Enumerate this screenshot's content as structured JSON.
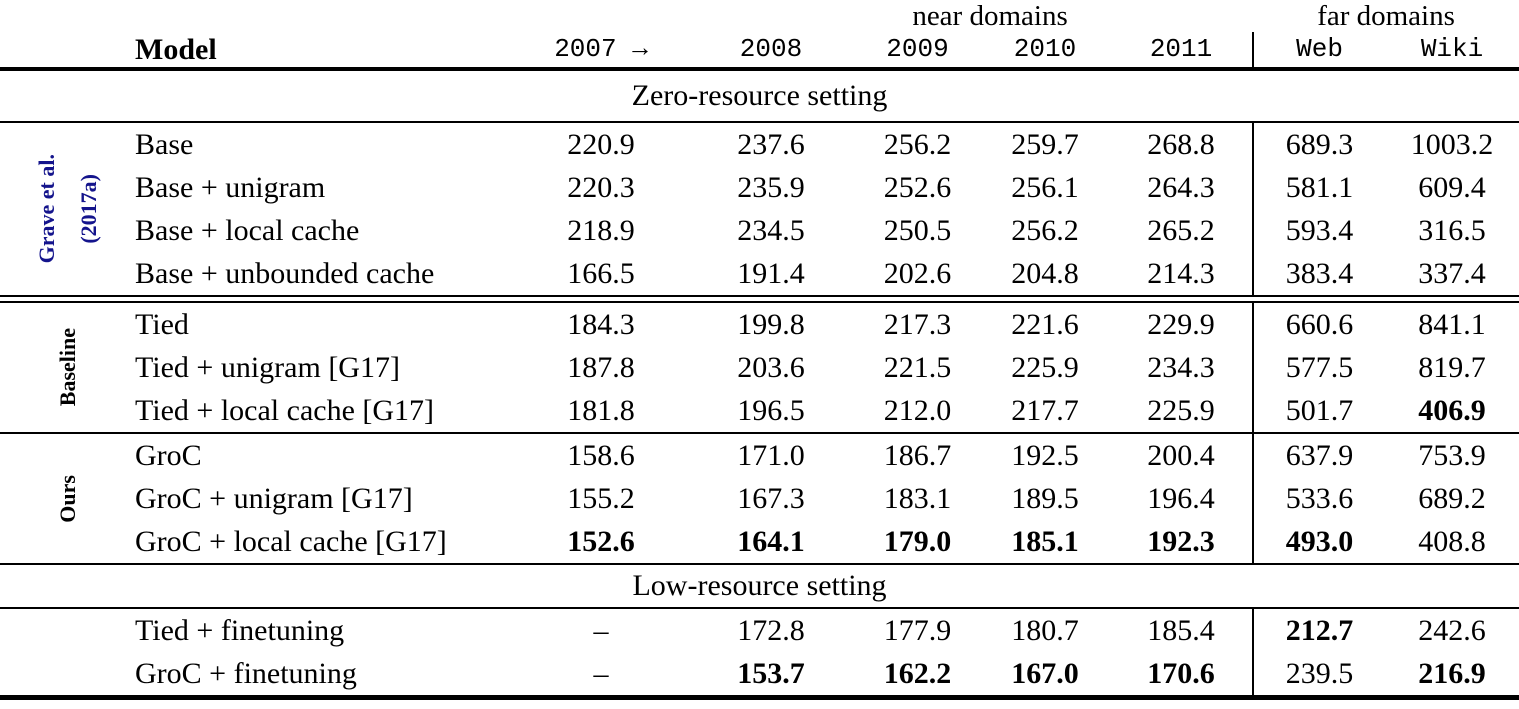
{
  "table": {
    "header": {
      "near_domains": "near domains",
      "far_domains": "far domains",
      "model": "Model",
      "year_cols": [
        "2007 →",
        "2008",
        "2009",
        "2010",
        "2011"
      ],
      "far_cols": [
        "Web",
        "Wiki"
      ]
    },
    "accent_color": "#14148c",
    "sections": [
      {
        "kind": "title",
        "label": "Zero-resource setting"
      },
      {
        "kind": "group",
        "side": {
          "lines": [
            "Grave et al.",
            "(2017a)"
          ],
          "color": "#14148c"
        },
        "rows": [
          {
            "model": "Base",
            "values": [
              "220.9",
              "237.6",
              "256.2",
              "259.7",
              "268.8",
              "689.3",
              "1003.2"
            ],
            "bold": []
          },
          {
            "model": "Base + unigram",
            "values": [
              "220.3",
              "235.9",
              "252.6",
              "256.1",
              "264.3",
              "581.1",
              "609.4"
            ],
            "bold": []
          },
          {
            "model": "Base + local cache",
            "values": [
              "218.9",
              "234.5",
              "250.5",
              "256.2",
              "265.2",
              "593.4",
              "316.5"
            ],
            "bold": []
          },
          {
            "model": "Base + unbounded cache",
            "values": [
              "166.5",
              "191.4",
              "202.6",
              "204.8",
              "214.3",
              "383.4",
              "337.4"
            ],
            "bold": []
          }
        ]
      },
      {
        "kind": "rule",
        "style": "double"
      },
      {
        "kind": "group",
        "side": {
          "lines": [
            "Baseline"
          ],
          "color": "#000000"
        },
        "rows": [
          {
            "model": "Tied",
            "values": [
              "184.3",
              "199.8",
              "217.3",
              "221.6",
              "229.9",
              "660.6",
              "841.1"
            ],
            "bold": []
          },
          {
            "model": "Tied + unigram [G17]",
            "values": [
              "187.8",
              "203.6",
              "221.5",
              "225.9",
              "234.3",
              "577.5",
              "819.7"
            ],
            "bold": []
          },
          {
            "model": "Tied + local cache [G17]",
            "values": [
              "181.8",
              "196.5",
              "212.0",
              "217.7",
              "225.9",
              "501.7",
              "406.9"
            ],
            "bold": [
              6
            ]
          }
        ]
      },
      {
        "kind": "rule",
        "style": "single"
      },
      {
        "kind": "group",
        "side": {
          "lines": [
            "Ours"
          ],
          "color": "#000000"
        },
        "rows": [
          {
            "model": "GroC",
            "values": [
              "158.6",
              "171.0",
              "186.7",
              "192.5",
              "200.4",
              "637.9",
              "753.9"
            ],
            "bold": []
          },
          {
            "model": "GroC + unigram [G17]",
            "values": [
              "155.2",
              "167.3",
              "183.1",
              "189.5",
              "196.4",
              "533.6",
              "689.2"
            ],
            "bold": []
          },
          {
            "model": "GroC + local cache [G17]",
            "values": [
              "152.6",
              "164.1",
              "179.0",
              "185.1",
              "192.3",
              "493.0",
              "408.8"
            ],
            "bold": [
              0,
              1,
              2,
              3,
              4,
              5
            ]
          }
        ]
      },
      {
        "kind": "title2",
        "label": "Low-resource setting"
      },
      {
        "kind": "group",
        "side": {
          "lines": [],
          "color": "#000000"
        },
        "rows": [
          {
            "model": "Tied + finetuning",
            "values": [
              "–",
              "172.8",
              "177.9",
              "180.7",
              "185.4",
              "212.7",
              "242.6"
            ],
            "bold": [
              5
            ]
          },
          {
            "model": "GroC + finetuning",
            "values": [
              "–",
              "153.7",
              "162.2",
              "167.0",
              "170.6",
              "239.5",
              "216.9"
            ],
            "bold": [
              1,
              2,
              3,
              4,
              6
            ]
          }
        ]
      },
      {
        "kind": "rule",
        "style": "thick"
      }
    ]
  }
}
